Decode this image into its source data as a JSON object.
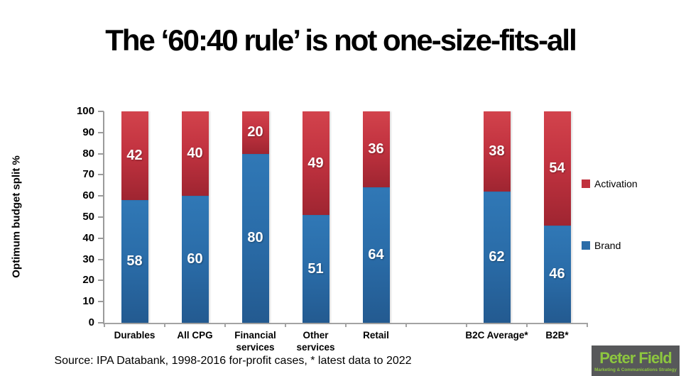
{
  "title": "The ‘60:40 rule’ is not one-size-fits-all",
  "y_axis": {
    "label": "Optimum budget split %"
  },
  "legend": {
    "items": [
      {
        "label": "Activation",
        "color": "#c0313d"
      },
      {
        "label": "Brand",
        "color": "#2a6ca8"
      }
    ]
  },
  "source_note": "Source: IPA Databank, 1998-2016 for-profit cases, * latest data to 2022",
  "logo": {
    "name": "Peter Field",
    "tagline": "Marketing & Communications Strategy",
    "bg_color": "#57585a",
    "text_color": "#8dc63f"
  },
  "chart_data": {
    "type": "bar",
    "stacked": true,
    "title": "The ‘60:40 rule’ is not one-size-fits-all",
    "categories": [
      "Durables",
      "All CPG",
      "Financial services",
      "Other services",
      "Retail",
      "B2C Average*",
      "B2B*"
    ],
    "slot_positions": [
      0,
      1,
      2,
      3,
      4,
      6,
      7
    ],
    "total_slots": 8,
    "series": [
      {
        "name": "Brand",
        "color": "#2a6ca8",
        "values": [
          58,
          60,
          80,
          51,
          64,
          62,
          46
        ]
      },
      {
        "name": "Activation",
        "color": "#c0313d",
        "values": [
          42,
          40,
          20,
          49,
          36,
          38,
          54
        ]
      }
    ],
    "xlabel": "",
    "ylabel": "Optimum budget split %",
    "ylim": [
      0,
      100
    ],
    "ytick_step": 10,
    "grid": false,
    "legend_position": "right",
    "value_labels": "inside-center"
  }
}
